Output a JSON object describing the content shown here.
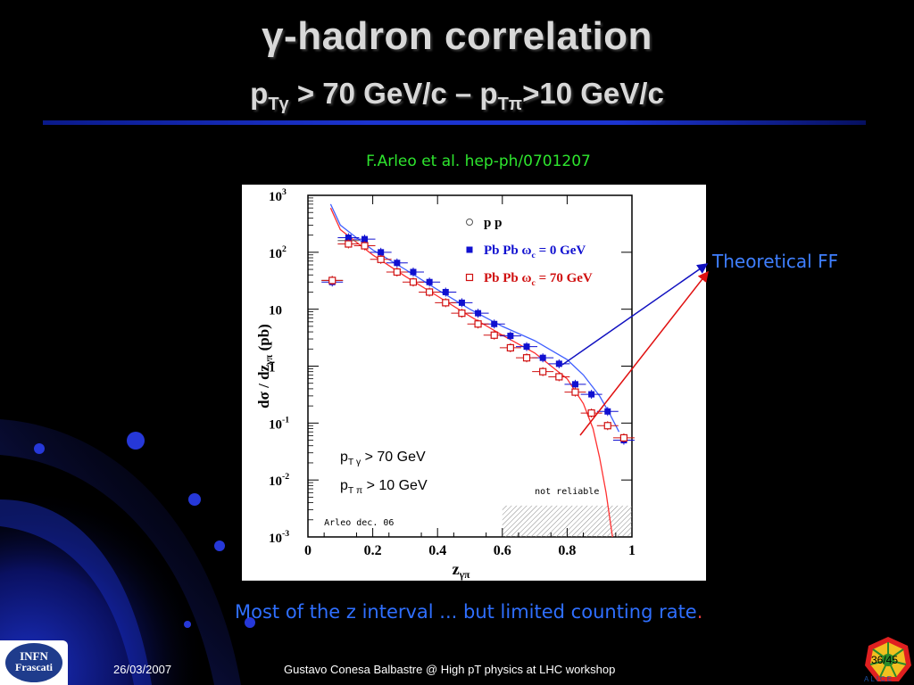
{
  "slide": {
    "title_prefix": "γ",
    "title_rest": "-hadron correlation",
    "subtitle": {
      "p1": "p",
      "sub1": "Tγ",
      "mid": " > 70 GeV/c – p",
      "sub2": "Tπ",
      "end": ">10 GeV/c"
    },
    "reference": "F.Arleo et al. hep-ph/0701207",
    "annotation": "Theoretical FF",
    "caption": "Most of the z interval  ... but limited counting rate",
    "caption_dot": "."
  },
  "footer": {
    "date": "26/03/2007",
    "author": "Gustavo Conesa Balbastre @ High pT physics at LHC workshop",
    "page": "36/45",
    "logo_line1": "INFN",
    "logo_line2": "Frascati",
    "alice_logo": "ALICE"
  },
  "colors": {
    "title": "#d8d8d8",
    "rule": "#1c34d0",
    "reference": "#2ee52e",
    "caption": "#2f6fff",
    "annotation": "#3f7fff",
    "pbpb0": "#1010d0",
    "pbpb70": "#d01010"
  },
  "chart_data": {
    "type": "scatter",
    "xlabel": "z",
    "xlabel_sub": "γπ",
    "ylabel": "dσ / dz",
    "ylabel_sub": "γπ",
    "ylabel_unit": " (pb)",
    "xlim": [
      0,
      1
    ],
    "ylim_log10": [
      -3,
      3
    ],
    "yscale": "log",
    "x_ticks": [
      "0",
      "0.2",
      "0.4",
      "0.6",
      "0.8",
      "1"
    ],
    "y_ticks": [
      {
        "base": "10",
        "exp": "3"
      },
      {
        "base": "10",
        "exp": "2"
      },
      {
        "base": "10",
        "exp": ""
      },
      {
        "base": "1",
        "exp": ""
      },
      {
        "base": "10",
        "exp": "-1"
      },
      {
        "base": "10",
        "exp": "-2"
      },
      {
        "base": "10",
        "exp": "-3"
      }
    ],
    "legend_position": "top-right",
    "legend": [
      {
        "label": "p p",
        "marker": "circle-open",
        "color": "#333333"
      },
      {
        "label": "Pb Pb  ω",
        "sub": "c",
        "tail": " = 0 GeV",
        "marker": "square-filled",
        "color": "#1010d0"
      },
      {
        "label": "Pb Pb  ω",
        "sub": "c",
        "tail": " = 70 GeV",
        "marker": "square-open",
        "color": "#d01010"
      }
    ],
    "cuts": [
      {
        "p": "p",
        "sub": "T γ",
        "text": "  >  70 GeV"
      },
      {
        "p": "p",
        "sub": "T π",
        "text": "  >  10 GeV"
      }
    ],
    "unreliable_label": "not reliable",
    "unreliable_from_x": 0.6,
    "credit": "Arleo dec. 06",
    "series": [
      {
        "name": "p p",
        "marker": "circle-open",
        "color": "#555555",
        "x": [
          0.075,
          0.125
        ],
        "y": [
          32,
          160
        ]
      },
      {
        "name": "Pb Pb  ωc = 0 GeV",
        "marker": "square-filled",
        "color": "#1010d0",
        "x": [
          0.075,
          0.125,
          0.175,
          0.225,
          0.275,
          0.325,
          0.375,
          0.425,
          0.475,
          0.525,
          0.575,
          0.625,
          0.675,
          0.725,
          0.775,
          0.825,
          0.875,
          0.925,
          0.975
        ],
        "y": [
          30,
          180,
          170,
          100,
          65,
          45,
          30,
          20,
          13,
          8.5,
          5.5,
          3.4,
          2.2,
          1.4,
          1.1,
          0.48,
          0.32,
          0.16,
          0.05
        ]
      },
      {
        "name": "Pb Pb  ωc = 70 GeV",
        "marker": "square-open",
        "color": "#d01010",
        "x": [
          0.075,
          0.125,
          0.175,
          0.225,
          0.275,
          0.325,
          0.375,
          0.425,
          0.475,
          0.525,
          0.575,
          0.625,
          0.675,
          0.725,
          0.775,
          0.825,
          0.875,
          0.925,
          0.975
        ],
        "y": [
          32,
          140,
          130,
          75,
          45,
          30,
          20,
          13,
          8.5,
          5.5,
          3.5,
          2.1,
          1.4,
          0.8,
          0.65,
          0.35,
          0.15,
          0.09,
          0.055
        ]
      }
    ],
    "theory_curves": [
      {
        "color": "#4060ff",
        "x": [
          0.07,
          0.1,
          0.15,
          0.2,
          0.3,
          0.4,
          0.5,
          0.6,
          0.7,
          0.8,
          0.85,
          0.9,
          0.93,
          0.96
        ],
        "y": [
          700,
          300,
          180,
          110,
          50,
          22,
          10,
          5,
          2.8,
          1.3,
          0.7,
          0.3,
          0.15,
          0.07
        ]
      },
      {
        "color": "#ff3030",
        "x": [
          0.07,
          0.1,
          0.15,
          0.2,
          0.3,
          0.4,
          0.5,
          0.6,
          0.7,
          0.8,
          0.85,
          0.88,
          0.9,
          0.92,
          0.94
        ],
        "y": [
          600,
          250,
          150,
          90,
          38,
          17,
          7.5,
          3.5,
          1.7,
          0.6,
          0.22,
          0.08,
          0.025,
          0.006,
          0.001
        ]
      }
    ]
  }
}
